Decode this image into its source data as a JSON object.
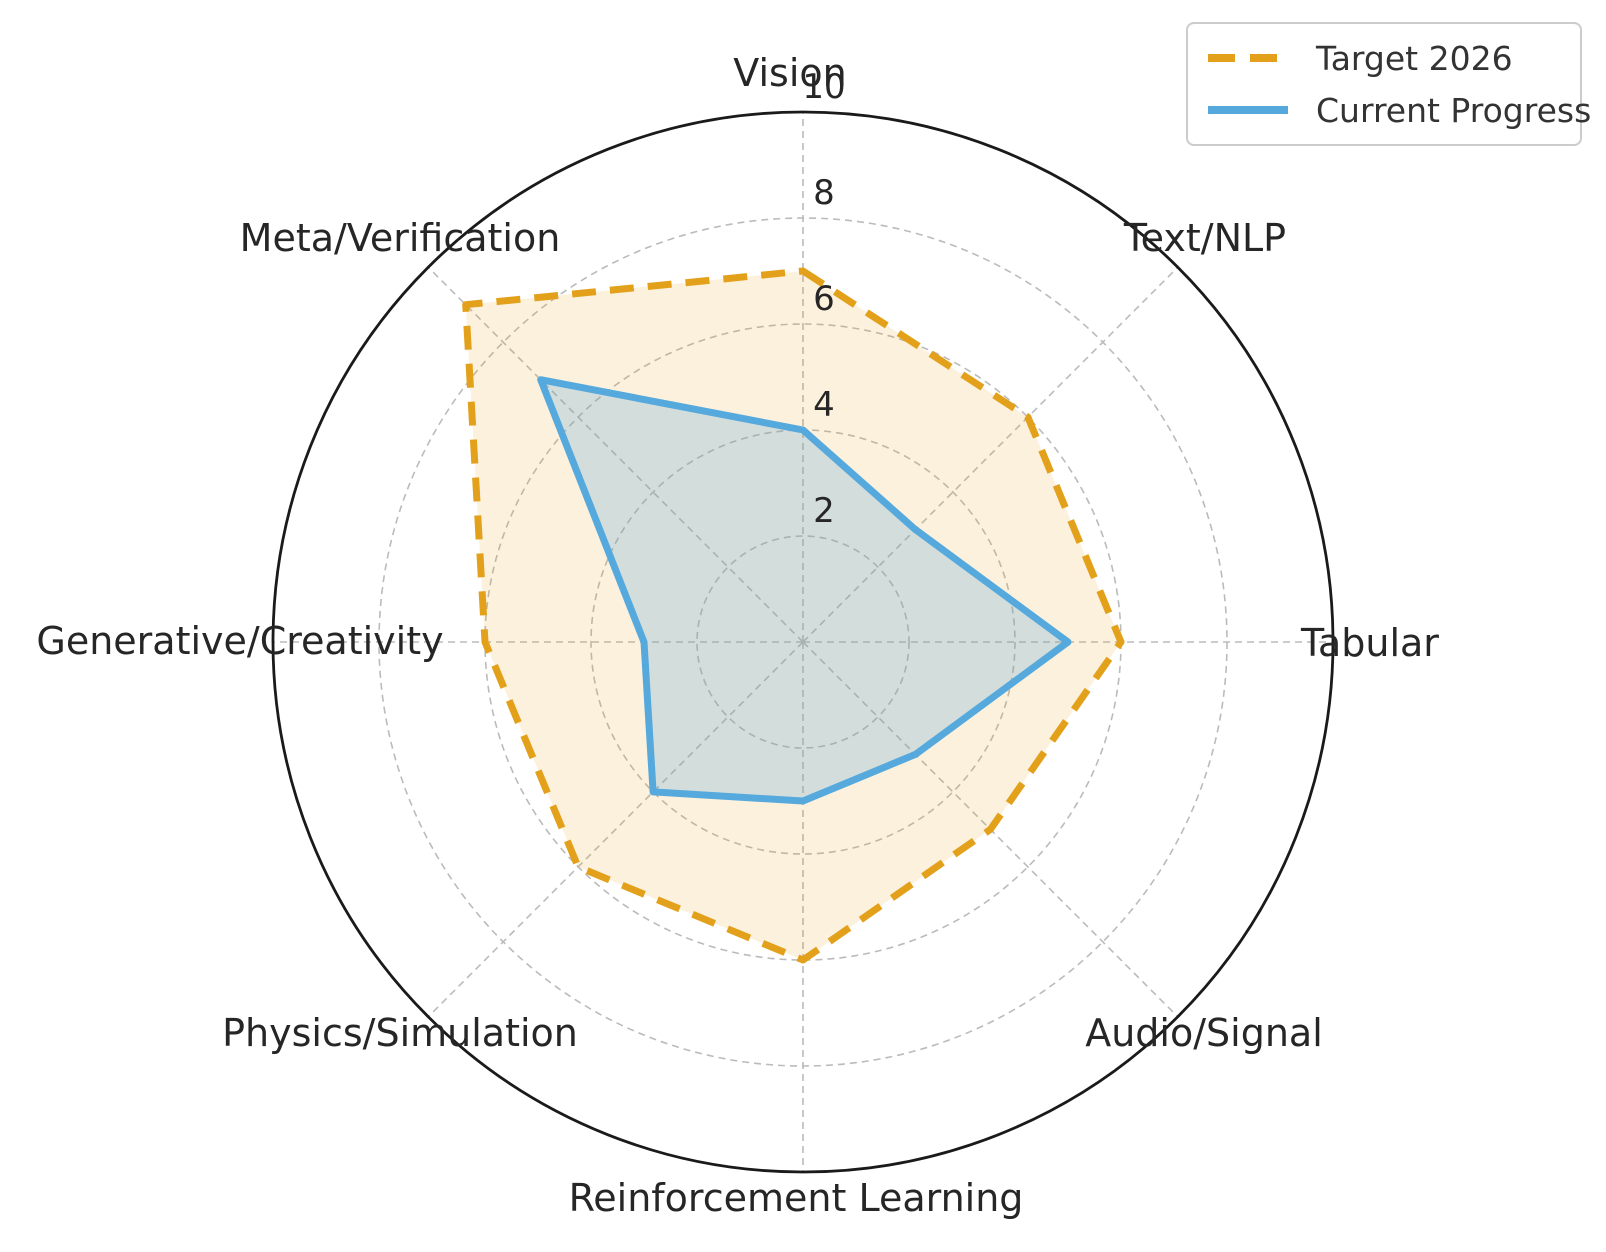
{
  "legend": {
    "items": [
      {
        "label": "Target 2026"
      },
      {
        "label": "Current Progress"
      }
    ]
  },
  "chart_data": {
    "type": "radar",
    "categories": [
      "Vision",
      "Text/NLP",
      "Tabular",
      "Audio/Signal",
      "Reinforcement Learning",
      "Physics/Simulation",
      "Generative/Creativity",
      "Meta/Verification"
    ],
    "series": [
      {
        "name": "Target 2026",
        "values": [
          7,
          6,
          6,
          5,
          6,
          6,
          6,
          9
        ],
        "color": "#E3A11B",
        "fill": "rgba(232,163,28,0.15)",
        "line_style": "dashed"
      },
      {
        "name": "Current Progress",
        "values": [
          4,
          3,
          5,
          3,
          3,
          4,
          3,
          7
        ],
        "color": "#56A9DC",
        "fill": "rgba(86,169,220,0.25)",
        "line_style": "solid"
      }
    ],
    "radial_ticks": [
      2,
      4,
      6,
      8,
      10
    ],
    "r_max": 10,
    "grid": "dashed-gray",
    "legend_position": "top-right",
    "colors": {
      "grid": "#BBBBBB",
      "outer_ring": "#1A1A1A",
      "tick_text": "#262626",
      "label_text": "#262626"
    }
  }
}
